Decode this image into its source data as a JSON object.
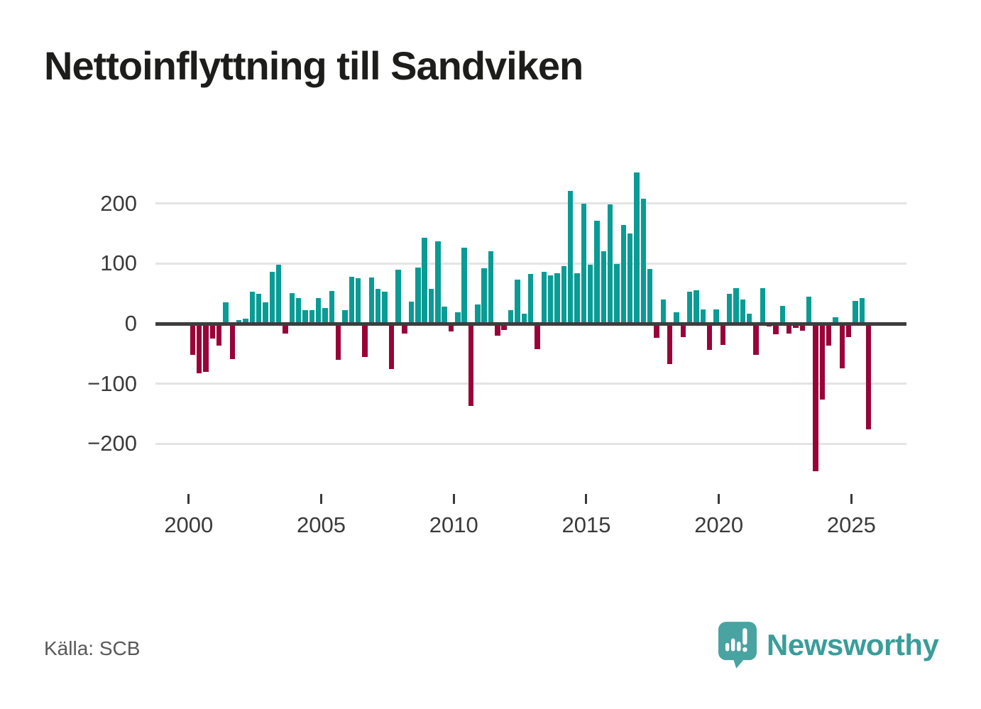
{
  "title": "Nettoinflyttning till Sandviken",
  "source": "Källa: SCB",
  "logo": {
    "brand": "Newsworthy"
  },
  "chart_data": {
    "type": "bar",
    "title": "Nettoinflyttning till Sandviken",
    "xlabel": "",
    "ylabel": "",
    "unit": "quarter",
    "grid": true,
    "legend": false,
    "ylim": [
      -260,
      265
    ],
    "colors": {
      "positive": "#089c95",
      "negative": "#990338"
    },
    "y_ticks": [
      {
        "label": "200",
        "value": 200
      },
      {
        "label": "100",
        "value": 100
      },
      {
        "label": "0",
        "value": 0
      },
      {
        "label": "−100",
        "value": -100
      },
      {
        "label": "−200",
        "value": -200
      }
    ],
    "x_ticks": [
      {
        "label": "2000",
        "year": 2000
      },
      {
        "label": "2005",
        "year": 2005
      },
      {
        "label": "2010",
        "year": 2010
      },
      {
        "label": "2015",
        "year": 2015
      },
      {
        "label": "2020",
        "year": 2020
      },
      {
        "label": "2025",
        "year": 2025
      }
    ],
    "quarters": [
      "2000Q1",
      "2000Q2",
      "2000Q3",
      "2000Q4",
      "2001Q1",
      "2001Q2",
      "2001Q3",
      "2001Q4",
      "2002Q1",
      "2002Q2",
      "2002Q3",
      "2002Q4",
      "2003Q1",
      "2003Q2",
      "2003Q3",
      "2003Q4",
      "2004Q1",
      "2004Q2",
      "2004Q3",
      "2004Q4",
      "2005Q1",
      "2005Q2",
      "2005Q3",
      "2005Q4",
      "2006Q1",
      "2006Q2",
      "2006Q3",
      "2006Q4",
      "2007Q1",
      "2007Q2",
      "2007Q3",
      "2007Q4",
      "2008Q1",
      "2008Q2",
      "2008Q3",
      "2008Q4",
      "2009Q1",
      "2009Q2",
      "2009Q3",
      "2009Q4",
      "2010Q1",
      "2010Q2",
      "2010Q3",
      "2010Q4",
      "2011Q1",
      "2011Q2",
      "2011Q3",
      "2011Q4",
      "2012Q1",
      "2012Q2",
      "2012Q3",
      "2012Q4",
      "2013Q1",
      "2013Q2",
      "2013Q3",
      "2013Q4",
      "2014Q1",
      "2014Q2",
      "2014Q3",
      "2014Q4",
      "2015Q1",
      "2015Q2",
      "2015Q3",
      "2015Q4",
      "2016Q1",
      "2016Q2",
      "2016Q3",
      "2016Q4",
      "2017Q1",
      "2017Q2",
      "2017Q3",
      "2017Q4",
      "2018Q1",
      "2018Q2",
      "2018Q3",
      "2018Q4",
      "2019Q1",
      "2019Q2",
      "2019Q3",
      "2019Q4",
      "2020Q1",
      "2020Q2",
      "2020Q3",
      "2020Q4",
      "2021Q1",
      "2021Q2",
      "2021Q3",
      "2021Q4",
      "2022Q1",
      "2022Q2",
      "2022Q3",
      "2022Q4",
      "2023Q1",
      "2023Q2",
      "2023Q3",
      "2023Q4",
      "2024Q1",
      "2024Q2",
      "2024Q3",
      "2024Q4",
      "2025Q1",
      "2025Q2",
      "2025Q3"
    ],
    "values": [
      -52,
      -83,
      -80,
      -25,
      -37,
      35,
      -59,
      6,
      8,
      53,
      49,
      35,
      86,
      98,
      -17,
      51,
      43,
      23,
      22,
      43,
      26,
      54,
      -60,
      22,
      78,
      75,
      -55,
      77,
      58,
      53,
      -75,
      90,
      -17,
      37,
      93,
      143,
      58,
      137,
      28,
      -13,
      19,
      126,
      -137,
      32,
      92,
      121,
      -20,
      -11,
      22,
      73,
      16,
      83,
      -43,
      86,
      80,
      84,
      96,
      221,
      84,
      199,
      98,
      171,
      121,
      198,
      99,
      164,
      150,
      252,
      208,
      91,
      -24,
      40,
      -67,
      19,
      -22,
      53,
      55,
      24,
      -44,
      24,
      -35,
      49,
      59,
      40,
      16,
      -52,
      59,
      -5,
      -18,
      29,
      -16,
      -7,
      -12,
      45,
      -245,
      -126,
      -37,
      11,
      -74,
      -23,
      38,
      42,
      -176
    ]
  }
}
